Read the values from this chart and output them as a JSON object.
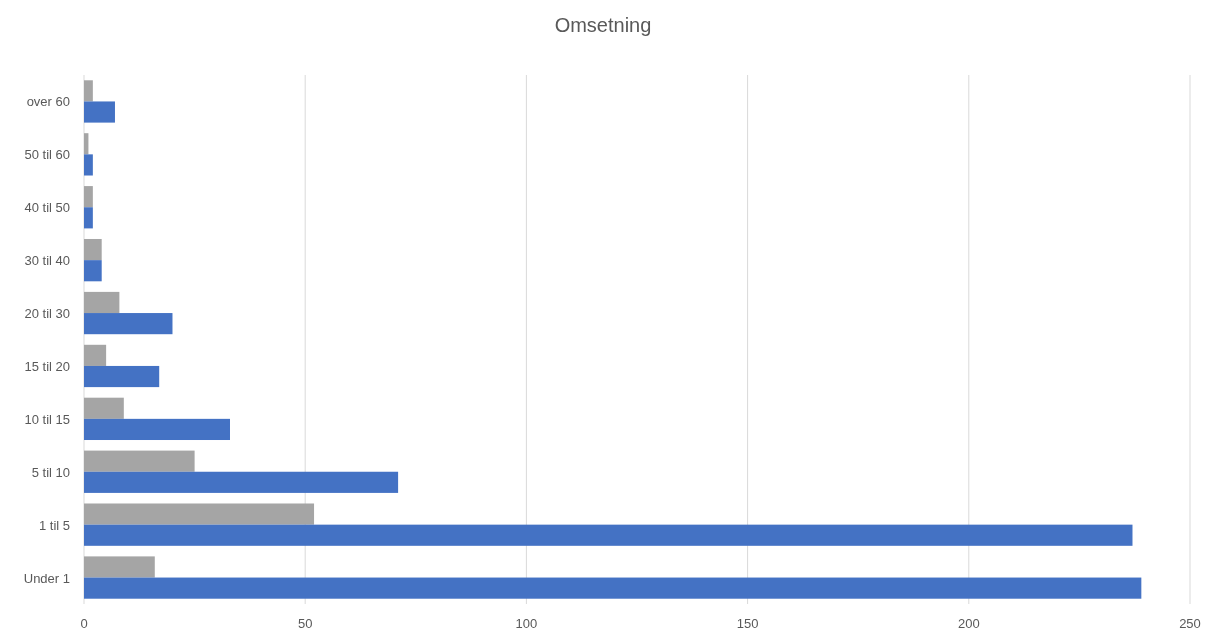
{
  "chart_data": {
    "type": "bar",
    "orientation": "horizontal",
    "title": "Omsetning",
    "categories": [
      "over 60",
      "50 til 60",
      "40 til 50",
      "30 til 40",
      "20 til 30",
      "15 til 20",
      "10 til 15",
      "5 til 10",
      "1 til 5",
      "Under 1"
    ],
    "series": [
      {
        "color": "#a5a5a5",
        "values": [
          2,
          1,
          2,
          4,
          8,
          5,
          9,
          25,
          52,
          16
        ]
      },
      {
        "color": "#4472c4",
        "values": [
          7,
          2,
          2,
          4,
          20,
          17,
          33,
          71,
          237,
          239
        ]
      }
    ],
    "xlim": [
      0,
      250
    ],
    "xticks": [
      0,
      50,
      100,
      150,
      200,
      250
    ],
    "grid": "x"
  }
}
